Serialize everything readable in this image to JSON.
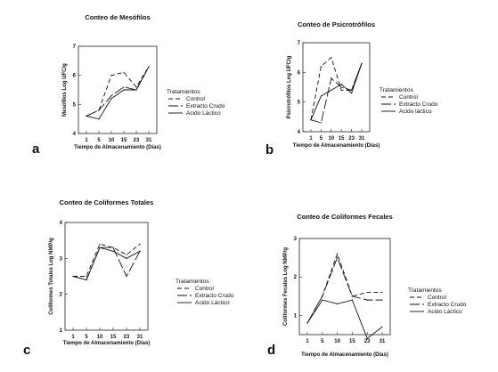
{
  "figure": {
    "legend_title": "Tratamientos",
    "series_styles": {
      "Control": {
        "dash": "5,3"
      },
      "Extracto Crudo": {
        "dash": "11,3"
      },
      "Acido Láctico": {
        "dash": ""
      }
    }
  },
  "chart_data": [
    {
      "type": "line",
      "letter": "a",
      "title": "Conteo de Mesófilos",
      "xlabel": "Tiempo de Almacenamiento (Días)",
      "ylabel": "Mesófilos Log UFC/g",
      "x": [
        1,
        5,
        10,
        15,
        23,
        31
      ],
      "yticks": [
        4,
        5,
        6,
        7
      ],
      "ylim": [
        4,
        7
      ],
      "legend": {
        "position": "right",
        "title": "Tratamientos",
        "entries": [
          "Control",
          "Extracto Crudo",
          "Acido Láctico"
        ]
      },
      "series": [
        {
          "name": "Control",
          "values": [
            4.6,
            4.8,
            6.0,
            6.1,
            5.6,
            6.3
          ]
        },
        {
          "name": "Extracto Crudo",
          "values": [
            4.6,
            4.8,
            5.3,
            5.6,
            5.5,
            6.3
          ]
        },
        {
          "name": "Acido Láctico",
          "values": [
            4.6,
            4.5,
            5.2,
            5.5,
            5.5,
            6.3
          ]
        }
      ]
    },
    {
      "type": "line",
      "letter": "b",
      "title": "Conteo de Psicrotrófilos",
      "xlabel": "Tiempo de Almacenamiento (Días)",
      "ylabel": "Psicrotrófilos Log UFC/g",
      "x": [
        1,
        5,
        10,
        15,
        23,
        31
      ],
      "yticks": [
        4,
        5,
        6,
        7
      ],
      "ylim": [
        4,
        7
      ],
      "legend": {
        "position": "right",
        "title": "Tratamientos",
        "entries": [
          "Control",
          "Extracto Crudo",
          "Acido láctico"
        ]
      },
      "series": [
        {
          "name": "Control",
          "values": [
            4.4,
            6.2,
            6.5,
            5.4,
            5.4,
            6.3
          ]
        },
        {
          "name": "Extracto Crudo",
          "values": [
            4.4,
            4.3,
            5.8,
            5.5,
            5.4,
            6.3
          ]
        },
        {
          "name": "Acido láctico",
          "values": [
            4.4,
            5.2,
            5.4,
            5.6,
            5.3,
            6.3
          ]
        }
      ]
    },
    {
      "type": "line",
      "letter": "c",
      "title": "Conteo de Coliformes Totales",
      "xlabel": "Tiempo de Almacenamiento (Días)",
      "ylabel": "Coliformes Totales Log NMP/g",
      "x": [
        1,
        5,
        10,
        15,
        23,
        31
      ],
      "yticks": [
        1,
        2,
        3,
        4
      ],
      "ylim": [
        1,
        4
      ],
      "legend": {
        "position": "right",
        "title": "Tratamientos",
        "entries": [
          "Control",
          "Extracto Crudo",
          "Acido Láctico"
        ]
      },
      "series": [
        {
          "name": "Control",
          "values": [
            2.5,
            2.5,
            3.4,
            3.3,
            3.1,
            3.4
          ]
        },
        {
          "name": "Extracto Crudo",
          "values": [
            2.5,
            2.4,
            3.3,
            3.3,
            2.5,
            3.2
          ]
        },
        {
          "name": "Acido Láctico",
          "values": [
            2.5,
            2.4,
            3.3,
            3.2,
            3.0,
            3.2
          ]
        }
      ]
    },
    {
      "type": "line",
      "letter": "d",
      "title": "Conteo de Coliformes Fecales",
      "xlabel": "Tiempo de Almacenamiento (Días)",
      "ylabel": "Coliformes Fecales Log NMP/g",
      "x": [
        1,
        5,
        10,
        15,
        23,
        31
      ],
      "yticks": [
        1,
        2,
        3
      ],
      "ylim": [
        0.5,
        3
      ],
      "legend": {
        "position": "right",
        "title": "Tratamientos",
        "entries": [
          "Control",
          "Extracto Crudo",
          "Acido Láctico"
        ]
      },
      "series": [
        {
          "name": "Control",
          "values": [
            0.8,
            1.5,
            2.6,
            1.5,
            1.6,
            1.6
          ]
        },
        {
          "name": "Extracto Crudo",
          "values": [
            0.8,
            1.5,
            2.5,
            1.5,
            1.4,
            1.4
          ]
        },
        {
          "name": "Acido Láctico",
          "values": [
            0.8,
            1.4,
            1.3,
            1.4,
            0.4,
            0.7
          ]
        }
      ]
    }
  ]
}
